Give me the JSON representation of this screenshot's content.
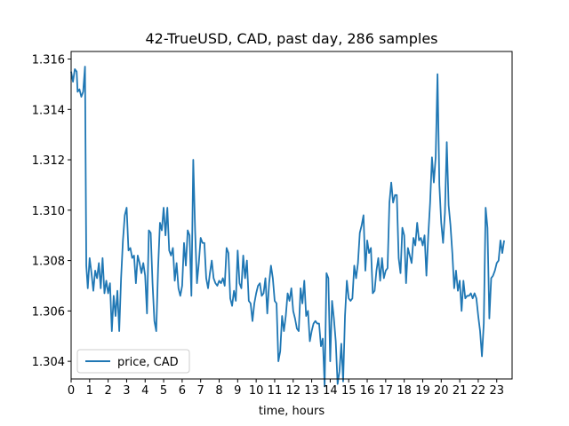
{
  "chart_data": {
    "type": "line",
    "title": "42-TrueUSD, CAD, past day, 286 samples",
    "xlabel": "time, hours",
    "ylabel": "",
    "xlim": [
      0,
      23.83
    ],
    "ylim": [
      1.3033,
      1.3163
    ],
    "x_ticks": [
      0,
      1,
      2,
      3,
      4,
      5,
      6,
      7,
      8,
      9,
      10,
      11,
      12,
      13,
      14,
      15,
      16,
      17,
      18,
      19,
      20,
      21,
      22,
      23
    ],
    "y_ticks": [
      1.304,
      1.306,
      1.308,
      1.31,
      1.312,
      1.314,
      1.316
    ],
    "y_tick_labels": [
      "1.304",
      "1.306",
      "1.308",
      "1.310",
      "1.312",
      "1.314",
      "1.316"
    ],
    "legend": {
      "location": "lower-left",
      "entries": [
        "price, CAD"
      ]
    },
    "series": [
      {
        "name": "price, CAD",
        "color": "#1f77b4",
        "points": [
          [
            0.0,
            1.3155
          ],
          [
            0.1,
            1.3151
          ],
          [
            0.2,
            1.3156
          ],
          [
            0.3,
            1.3155
          ],
          [
            0.35,
            1.3147
          ],
          [
            0.45,
            1.3148
          ],
          [
            0.55,
            1.3145
          ],
          [
            0.65,
            1.3147
          ],
          [
            0.75,
            1.3157
          ],
          [
            0.82,
            1.3078
          ],
          [
            0.9,
            1.3069
          ],
          [
            1.0,
            1.3081
          ],
          [
            1.1,
            1.3075
          ],
          [
            1.2,
            1.3068
          ],
          [
            1.3,
            1.3076
          ],
          [
            1.4,
            1.3073
          ],
          [
            1.5,
            1.3079
          ],
          [
            1.6,
            1.3069
          ],
          [
            1.7,
            1.3081
          ],
          [
            1.8,
            1.3067
          ],
          [
            1.9,
            1.3072
          ],
          [
            2.0,
            1.3067
          ],
          [
            2.1,
            1.3071
          ],
          [
            2.2,
            1.3052
          ],
          [
            2.3,
            1.3066
          ],
          [
            2.4,
            1.3058
          ],
          [
            2.5,
            1.3068
          ],
          [
            2.6,
            1.3052
          ],
          [
            2.7,
            1.3073
          ],
          [
            2.8,
            1.3088
          ],
          [
            2.9,
            1.3098
          ],
          [
            3.0,
            1.3101
          ],
          [
            3.1,
            1.3084
          ],
          [
            3.2,
            1.3085
          ],
          [
            3.3,
            1.3081
          ],
          [
            3.4,
            1.3082
          ],
          [
            3.5,
            1.3071
          ],
          [
            3.6,
            1.3082
          ],
          [
            3.7,
            1.3079
          ],
          [
            3.8,
            1.3075
          ],
          [
            3.9,
            1.3079
          ],
          [
            4.0,
            1.3074
          ],
          [
            4.1,
            1.3059
          ],
          [
            4.2,
            1.3092
          ],
          [
            4.3,
            1.3091
          ],
          [
            4.4,
            1.3071
          ],
          [
            4.5,
            1.3056
          ],
          [
            4.6,
            1.3052
          ],
          [
            4.7,
            1.3077
          ],
          [
            4.8,
            1.3095
          ],
          [
            4.9,
            1.3092
          ],
          [
            5.0,
            1.3101
          ],
          [
            5.1,
            1.309
          ],
          [
            5.2,
            1.3101
          ],
          [
            5.3,
            1.3084
          ],
          [
            5.4,
            1.3082
          ],
          [
            5.5,
            1.3085
          ],
          [
            5.6,
            1.3072
          ],
          [
            5.7,
            1.3079
          ],
          [
            5.8,
            1.3069
          ],
          [
            5.9,
            1.3066
          ],
          [
            6.0,
            1.307
          ],
          [
            6.1,
            1.3087
          ],
          [
            6.2,
            1.3078
          ],
          [
            6.3,
            1.3092
          ],
          [
            6.4,
            1.309
          ],
          [
            6.5,
            1.3066
          ],
          [
            6.6,
            1.312
          ],
          [
            6.7,
            1.3092
          ],
          [
            6.8,
            1.3071
          ],
          [
            6.9,
            1.3079
          ],
          [
            7.0,
            1.3089
          ],
          [
            7.1,
            1.3087
          ],
          [
            7.2,
            1.3087
          ],
          [
            7.3,
            1.3073
          ],
          [
            7.4,
            1.3069
          ],
          [
            7.5,
            1.3075
          ],
          [
            7.6,
            1.308
          ],
          [
            7.7,
            1.3073
          ],
          [
            7.8,
            1.3071
          ],
          [
            7.9,
            1.307
          ],
          [
            8.0,
            1.3072
          ],
          [
            8.1,
            1.3071
          ],
          [
            8.2,
            1.3073
          ],
          [
            8.3,
            1.307
          ],
          [
            8.4,
            1.3085
          ],
          [
            8.5,
            1.3083
          ],
          [
            8.6,
            1.3065
          ],
          [
            8.7,
            1.3062
          ],
          [
            8.8,
            1.3068
          ],
          [
            8.9,
            1.3064
          ],
          [
            9.0,
            1.3084
          ],
          [
            9.1,
            1.3071
          ],
          [
            9.2,
            1.3069
          ],
          [
            9.3,
            1.3082
          ],
          [
            9.4,
            1.3073
          ],
          [
            9.5,
            1.308
          ],
          [
            9.6,
            1.3064
          ],
          [
            9.7,
            1.3063
          ],
          [
            9.8,
            1.3056
          ],
          [
            9.9,
            1.3063
          ],
          [
            10.0,
            1.3067
          ],
          [
            10.1,
            1.307
          ],
          [
            10.2,
            1.3071
          ],
          [
            10.3,
            1.3066
          ],
          [
            10.4,
            1.3067
          ],
          [
            10.5,
            1.3073
          ],
          [
            10.6,
            1.3059
          ],
          [
            10.7,
            1.3071
          ],
          [
            10.8,
            1.3078
          ],
          [
            10.9,
            1.3073
          ],
          [
            11.0,
            1.3064
          ],
          [
            11.1,
            1.3063
          ],
          [
            11.2,
            1.304
          ],
          [
            11.3,
            1.3044
          ],
          [
            11.4,
            1.3058
          ],
          [
            11.5,
            1.3052
          ],
          [
            11.6,
            1.3058
          ],
          [
            11.7,
            1.3067
          ],
          [
            11.8,
            1.3064
          ],
          [
            11.9,
            1.3069
          ],
          [
            12.0,
            1.306
          ],
          [
            12.1,
            1.3057
          ],
          [
            12.2,
            1.3053
          ],
          [
            12.3,
            1.3052
          ],
          [
            12.4,
            1.3069
          ],
          [
            12.5,
            1.3063
          ],
          [
            12.6,
            1.3072
          ],
          [
            12.7,
            1.3058
          ],
          [
            12.8,
            1.306
          ],
          [
            12.9,
            1.3048
          ],
          [
            13.0,
            1.3052
          ],
          [
            13.1,
            1.3055
          ],
          [
            13.2,
            1.3056
          ],
          [
            13.3,
            1.3055
          ],
          [
            13.4,
            1.3055
          ],
          [
            13.5,
            1.3046
          ],
          [
            13.6,
            1.3049
          ],
          [
            13.7,
            1.303
          ],
          [
            13.8,
            1.3075
          ],
          [
            13.9,
            1.3073
          ],
          [
            14.0,
            1.304
          ],
          [
            14.1,
            1.3064
          ],
          [
            14.2,
            1.3057
          ],
          [
            14.3,
            1.3048
          ],
          [
            14.4,
            1.3031
          ],
          [
            14.5,
            1.3036
          ],
          [
            14.6,
            1.3047
          ],
          [
            14.7,
            1.3032
          ],
          [
            14.8,
            1.3058
          ],
          [
            14.9,
            1.3072
          ],
          [
            15.0,
            1.3065
          ],
          [
            15.1,
            1.3064
          ],
          [
            15.2,
            1.3065
          ],
          [
            15.3,
            1.3078
          ],
          [
            15.4,
            1.3073
          ],
          [
            15.5,
            1.3079
          ],
          [
            15.6,
            1.3091
          ],
          [
            15.7,
            1.3094
          ],
          [
            15.8,
            1.3098
          ],
          [
            15.9,
            1.3076
          ],
          [
            16.0,
            1.3088
          ],
          [
            16.1,
            1.3083
          ],
          [
            16.2,
            1.3085
          ],
          [
            16.3,
            1.3067
          ],
          [
            16.4,
            1.3068
          ],
          [
            16.5,
            1.3076
          ],
          [
            16.6,
            1.3081
          ],
          [
            16.7,
            1.3072
          ],
          [
            16.8,
            1.3081
          ],
          [
            16.9,
            1.3073
          ],
          [
            17.0,
            1.3076
          ],
          [
            17.1,
            1.3077
          ],
          [
            17.2,
            1.3103
          ],
          [
            17.3,
            1.3111
          ],
          [
            17.4,
            1.3103
          ],
          [
            17.5,
            1.3106
          ],
          [
            17.6,
            1.3106
          ],
          [
            17.7,
            1.3081
          ],
          [
            17.8,
            1.3075
          ],
          [
            17.9,
            1.3093
          ],
          [
            18.0,
            1.309
          ],
          [
            18.1,
            1.3071
          ],
          [
            18.2,
            1.3085
          ],
          [
            18.3,
            1.3082
          ],
          [
            18.4,
            1.3079
          ],
          [
            18.5,
            1.3089
          ],
          [
            18.6,
            1.3086
          ],
          [
            18.7,
            1.3095
          ],
          [
            18.8,
            1.3088
          ],
          [
            18.9,
            1.3089
          ],
          [
            19.0,
            1.3086
          ],
          [
            19.1,
            1.309
          ],
          [
            19.2,
            1.3074
          ],
          [
            19.3,
            1.309
          ],
          [
            19.4,
            1.3103
          ],
          [
            19.5,
            1.3121
          ],
          [
            19.6,
            1.3111
          ],
          [
            19.7,
            1.3121
          ],
          [
            19.8,
            1.3154
          ],
          [
            19.9,
            1.311
          ],
          [
            20.0,
            1.3095
          ],
          [
            20.1,
            1.3087
          ],
          [
            20.2,
            1.3099
          ],
          [
            20.3,
            1.3127
          ],
          [
            20.4,
            1.3102
          ],
          [
            20.5,
            1.3094
          ],
          [
            20.6,
            1.3083
          ],
          [
            20.7,
            1.3069
          ],
          [
            20.8,
            1.3076
          ],
          [
            20.9,
            1.3068
          ],
          [
            21.0,
            1.3072
          ],
          [
            21.1,
            1.306
          ],
          [
            21.2,
            1.3072
          ],
          [
            21.3,
            1.3065
          ],
          [
            21.4,
            1.3066
          ],
          [
            21.5,
            1.3066
          ],
          [
            21.6,
            1.3067
          ],
          [
            21.7,
            1.3065
          ],
          [
            21.8,
            1.3067
          ],
          [
            21.9,
            1.3065
          ],
          [
            22.0,
            1.3058
          ],
          [
            22.1,
            1.3052
          ],
          [
            22.2,
            1.3042
          ],
          [
            22.3,
            1.3055
          ],
          [
            22.4,
            1.3101
          ],
          [
            22.5,
            1.3093
          ],
          [
            22.6,
            1.3057
          ],
          [
            22.7,
            1.3073
          ],
          [
            22.8,
            1.3074
          ],
          [
            22.9,
            1.3076
          ],
          [
            23.0,
            1.3079
          ],
          [
            23.1,
            1.308
          ],
          [
            23.2,
            1.3088
          ],
          [
            23.3,
            1.3083
          ],
          [
            23.4,
            1.3088
          ]
        ]
      }
    ]
  }
}
